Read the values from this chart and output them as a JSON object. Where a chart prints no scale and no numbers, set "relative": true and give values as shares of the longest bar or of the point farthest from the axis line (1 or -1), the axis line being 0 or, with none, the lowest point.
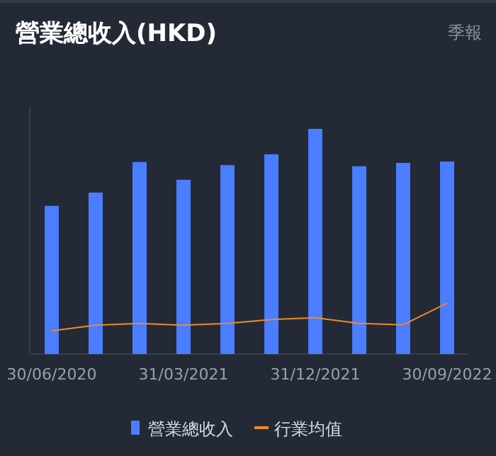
{
  "chart_data": {
    "type": "bar",
    "title": "營業總收入(HKD)",
    "subtitle": "季報",
    "relative": true,
    "legend": "bottom",
    "categories": [
      "30/06/2020",
      null,
      null,
      "31/03/2021",
      null,
      null,
      "31/12/2021",
      null,
      null,
      "30/09/2022"
    ],
    "series": [
      {
        "name": "營業總收入",
        "color": "#4a7dff",
        "values": [
          0.658,
          0.717,
          0.853,
          0.774,
          0.839,
          0.887,
          1,
          0.834,
          0.849,
          0.855
        ]
      },
      {
        "name": "行業均值",
        "type": "line",
        "color": "#f0892b",
        "values": [
          0.103,
          0.128,
          0.136,
          0.128,
          0.136,
          0.153,
          0.161,
          0.136,
          0.13,
          0.226
        ]
      }
    ]
  }
}
